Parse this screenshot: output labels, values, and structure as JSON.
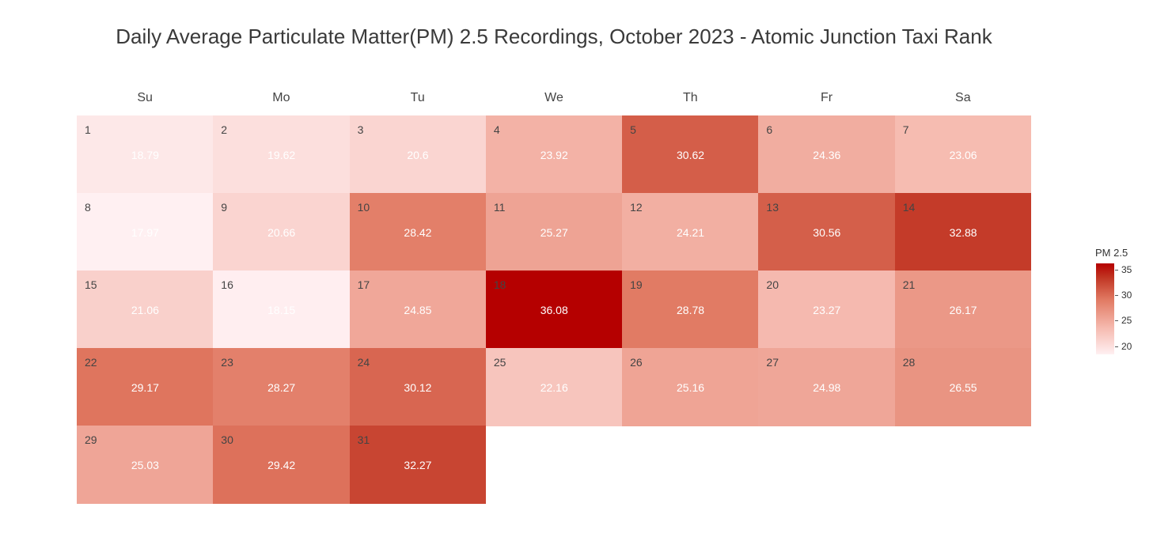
{
  "chart_data": {
    "type": "heatmap",
    "title": "Daily Average Particulate Matter(PM) 2.5 Recordings, October 2023 - Atomic Junction Taxi Rank",
    "weekdays": [
      "Su",
      "Mo",
      "Tu",
      "We",
      "Th",
      "Fr",
      "Sa"
    ],
    "first_weekday_index": 0,
    "days": [
      1,
      2,
      3,
      4,
      5,
      6,
      7,
      8,
      9,
      10,
      11,
      12,
      13,
      14,
      15,
      16,
      17,
      18,
      19,
      20,
      21,
      22,
      23,
      24,
      25,
      26,
      27,
      28,
      29,
      30,
      31
    ],
    "values": [
      "18.79",
      "19.62",
      "20.6",
      "23.92",
      "30.62",
      "24.36",
      "23.06",
      "17.97",
      "20.66",
      "28.42",
      "25.27",
      "24.21",
      "30.56",
      "32.88",
      "21.06",
      "18.15",
      "24.85",
      "36.08",
      "28.78",
      "23.27",
      "26.17",
      "29.17",
      "28.27",
      "30.12",
      "22.16",
      "25.16",
      "24.98",
      "26.55",
      "25.03",
      "29.42",
      "32.27"
    ],
    "legend": {
      "title": "PM 2.5",
      "ticks": [
        20,
        25,
        30,
        35
      ],
      "min": 17.97,
      "max": 36.08
    },
    "colors": {
      "low": "#fff0f2",
      "high": "#b50000"
    }
  }
}
